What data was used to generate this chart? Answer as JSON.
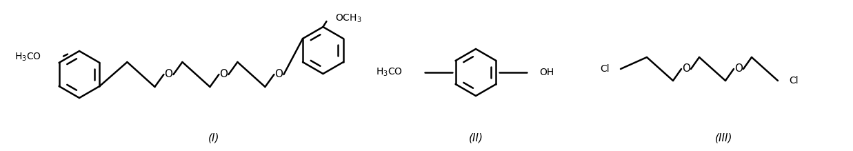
{
  "background_color": "#ffffff",
  "line_color": "#000000",
  "line_width": 1.8,
  "font_size": 10,
  "label_I": "(I)",
  "label_II": "(II)",
  "label_III": "(III)",
  "figsize": [
    12.37,
    2.19
  ],
  "dpi": 100
}
